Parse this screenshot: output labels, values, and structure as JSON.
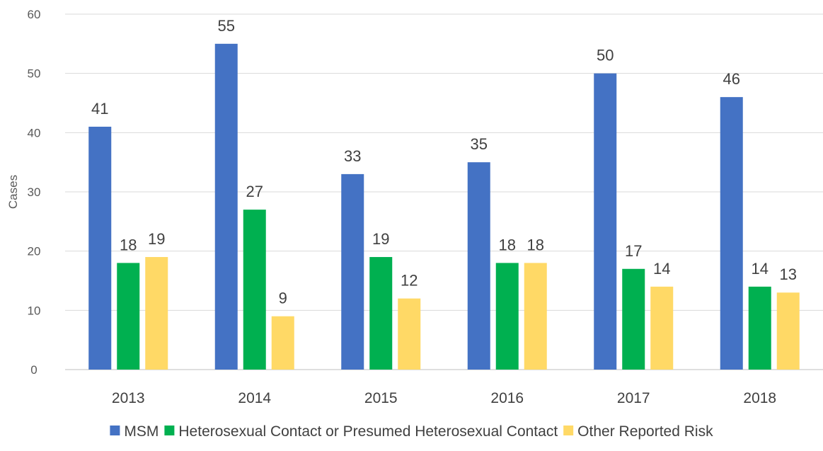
{
  "chart_data": {
    "type": "bar",
    "categories": [
      "2013",
      "2014",
      "2015",
      "2016",
      "2017",
      "2018"
    ],
    "series": [
      {
        "name": "MSM",
        "color": "#4472C4",
        "values": [
          41,
          55,
          33,
          35,
          50,
          46
        ]
      },
      {
        "name": "Heterosexual Contact or Presumed Heterosexual Contact",
        "color": "#00B050",
        "values": [
          18,
          27,
          19,
          18,
          17,
          14
        ]
      },
      {
        "name": "Other Reported Risk",
        "color": "#FFD966",
        "values": [
          19,
          9,
          12,
          18,
          14,
          13
        ]
      }
    ],
    "title": "",
    "xlabel": "",
    "ylabel": "Cases",
    "ylim": [
      0,
      60
    ],
    "yticks": [
      0,
      10,
      20,
      30,
      40,
      50,
      60
    ],
    "grid": true,
    "data_labels": true,
    "legend_position": "bottom"
  }
}
